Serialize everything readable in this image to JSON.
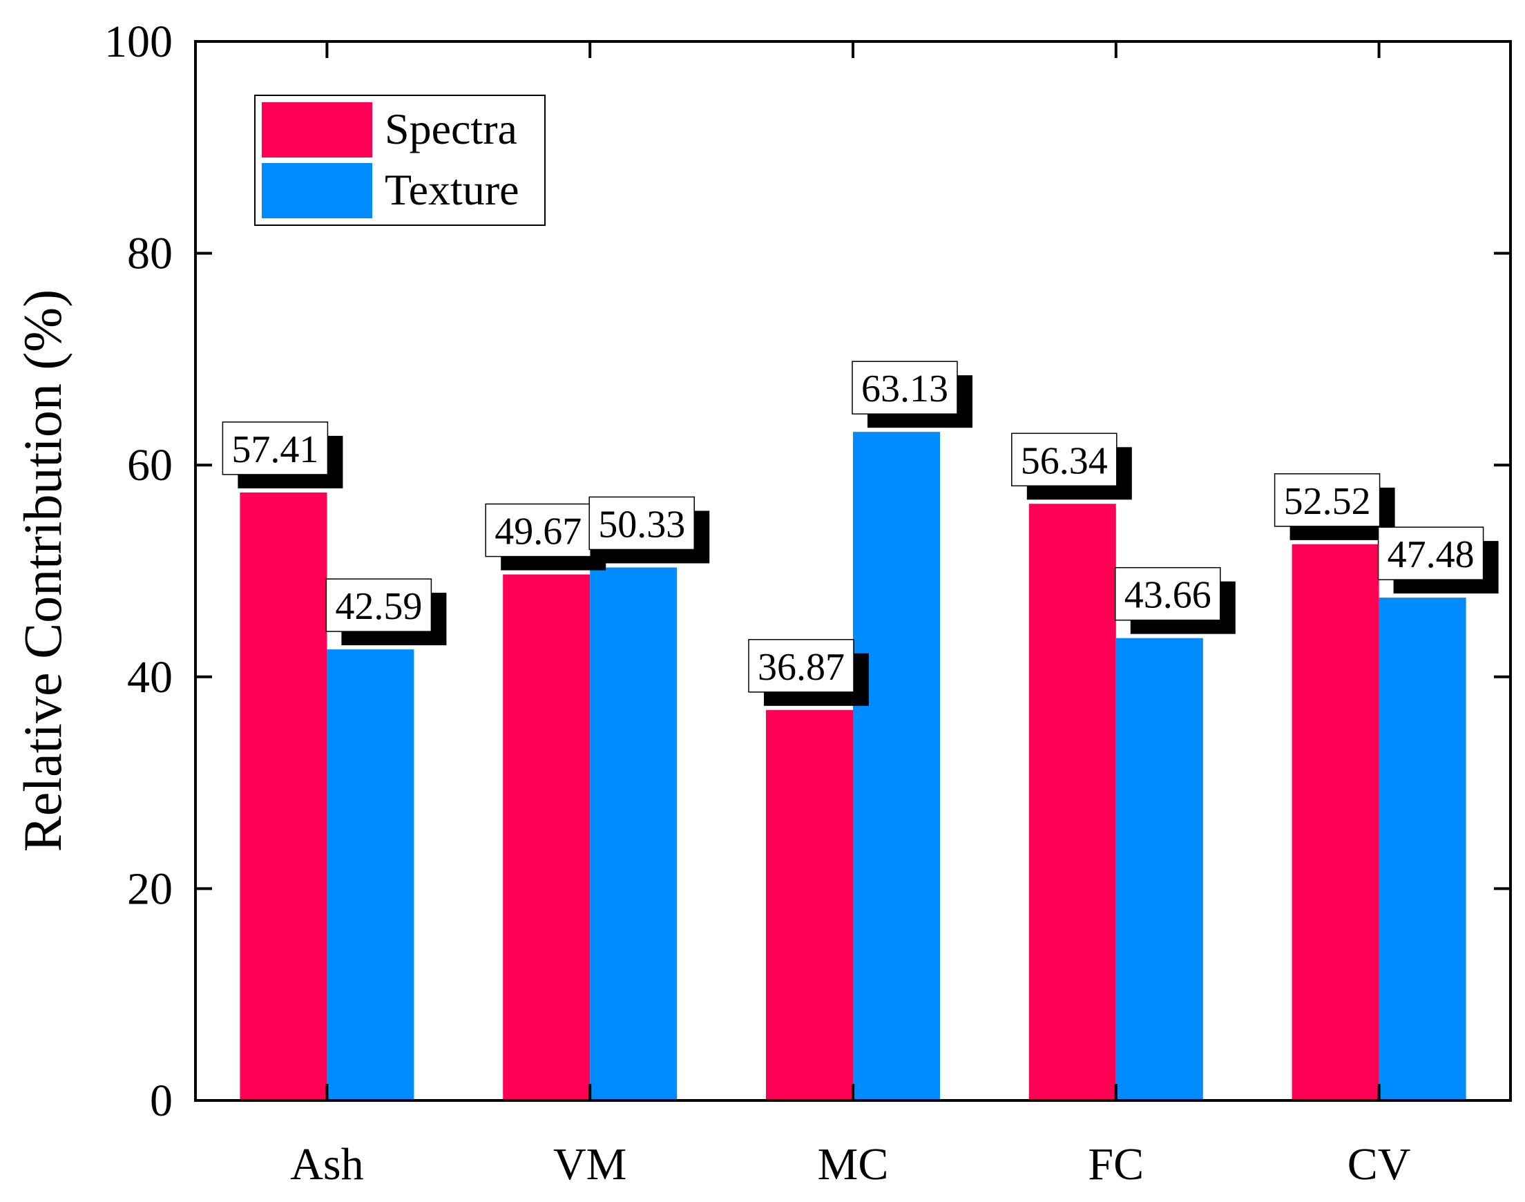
{
  "chart_data": {
    "type": "bar",
    "title": "",
    "xlabel": "",
    "ylabel": "Relative Contribution (%)",
    "ylim": [
      0,
      100
    ],
    "yticks": [
      0,
      20,
      40,
      60,
      80,
      100
    ],
    "ytick_labels": [
      "0",
      "20",
      "40",
      "60",
      "80",
      "100"
    ],
    "categories": [
      "Ash",
      "VM",
      "MC",
      "FC",
      "CV"
    ],
    "series": [
      {
        "name": "Spectra",
        "color": "#FF0055",
        "values": [
          57.41,
          49.67,
          36.87,
          56.34,
          52.52
        ],
        "labels": [
          "57.41",
          "49.67",
          "36.87",
          "56.34",
          "52.52"
        ]
      },
      {
        "name": "Texture",
        "color": "#008CFF",
        "values": [
          42.59,
          50.33,
          63.13,
          43.66,
          47.48
        ],
        "labels": [
          "42.59",
          "50.33",
          "63.13",
          "43.66",
          "47.48"
        ]
      }
    ],
    "legend_position": "top-left",
    "grid": false
  }
}
